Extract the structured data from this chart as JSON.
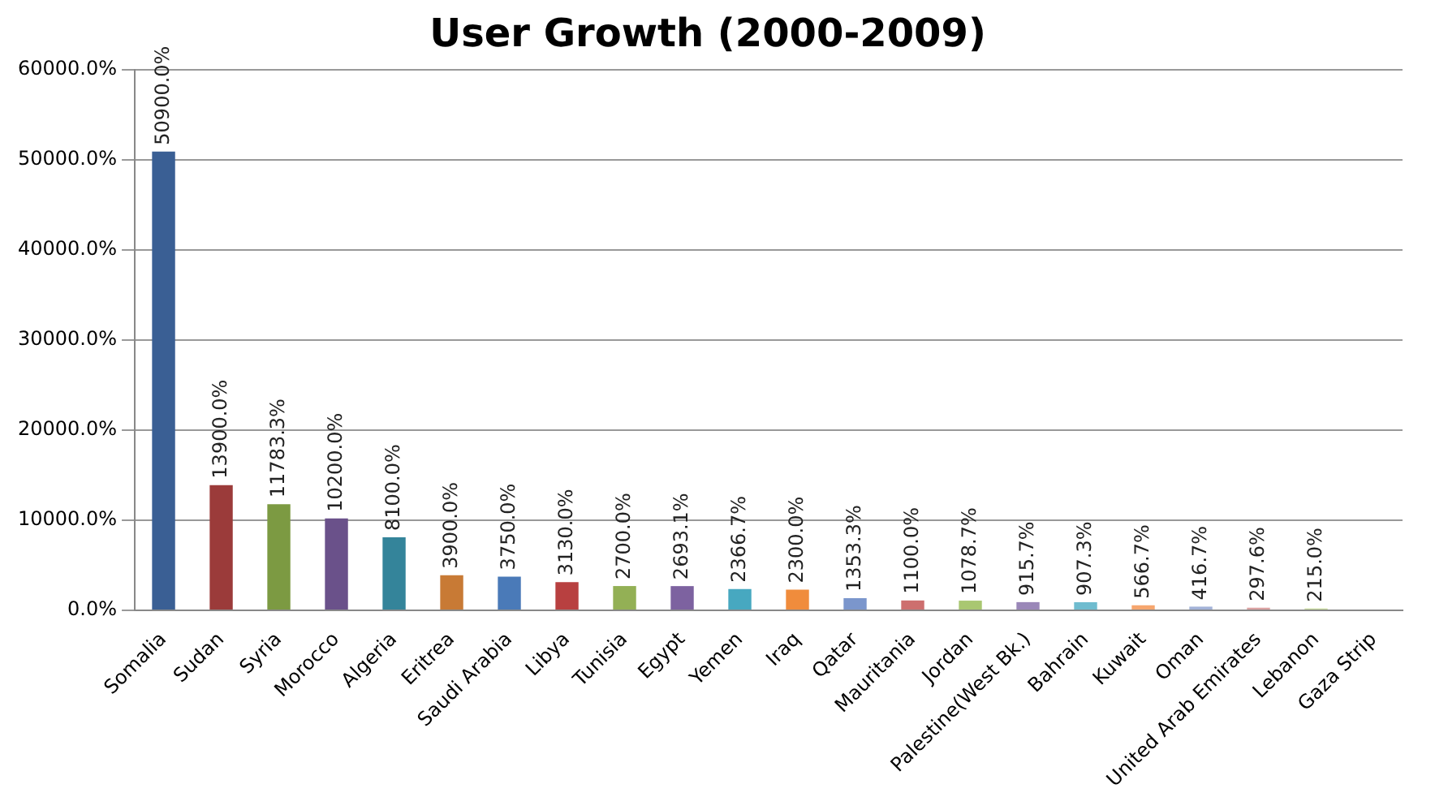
{
  "chart_data": {
    "type": "bar",
    "title": "User Growth (2000-2009)",
    "categories": [
      "Somalia",
      "Sudan",
      "Syria",
      "Morocco",
      "Algeria",
      "Eritrea",
      "Saudi Arabia",
      "Libya",
      "Tunisia",
      "Egypt",
      "Yemen",
      "Iraq",
      "Qatar",
      "Mauritania",
      "Jordan",
      "Palestine(West Bk.)",
      "Bahrain",
      "Kuwait",
      "Oman",
      "United Arab Emirates",
      "Lebanon",
      "Gaza Strip"
    ],
    "values": [
      50900,
      13900,
      11783.3,
      10200,
      8100,
      3900,
      3750,
      3130,
      2700,
      2693.1,
      2366.7,
      2300,
      1353.3,
      1100,
      1078.7,
      915.7,
      907.3,
      566.7,
      416.7,
      297.6,
      215,
      null
    ],
    "value_labels": [
      "50900.0%",
      "13900.0%",
      "11783.3%",
      "10200.0%",
      "8100.0%",
      "3900.0%",
      "3750.0%",
      "3130.0%",
      "2700.0%",
      "2693.1%",
      "2366.7%",
      "2300.0%",
      "1353.3%",
      "1100.0%",
      "1078.7%",
      "915.7%",
      "907.3%",
      "566.7%",
      "416.7%",
      "297.6%",
      "215.0%",
      null
    ],
    "colors": [
      "#3a5f94",
      "#9b3b3a",
      "#7c9a42",
      "#6a518a",
      "#34849a",
      "#c87a35",
      "#4a7ab8",
      "#b84040",
      "#93b055",
      "#7d62a0",
      "#47a8c0",
      "#f08c3c",
      "#7b96cc",
      "#cd6f6e",
      "#a9c771",
      "#9a87b8",
      "#6fbccf",
      "#f6a66e",
      "#a3b3d8",
      "#dca3a3",
      "#c9da9f",
      "#f9b98f"
    ],
    "ylim": [
      0,
      60000
    ],
    "yticks": [
      {
        "value": 0,
        "label": "0.0%"
      },
      {
        "value": 10000,
        "label": "10000.0%"
      },
      {
        "value": 20000,
        "label": "20000.0%"
      },
      {
        "value": 30000,
        "label": "30000.0%"
      },
      {
        "value": 40000,
        "label": "40000.0%"
      },
      {
        "value": 50000,
        "label": "50000.0%"
      },
      {
        "value": 60000,
        "label": "60000.0%"
      }
    ],
    "grid": "y",
    "legend": false
  }
}
